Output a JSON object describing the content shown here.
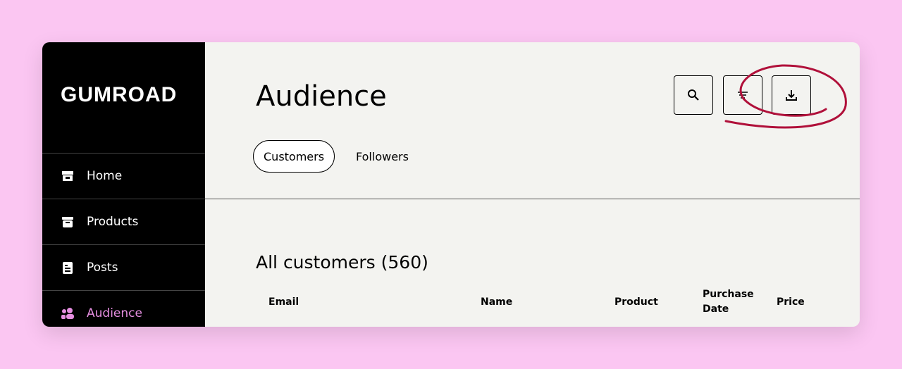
{
  "sidebar": {
    "logo": "GUMROAD",
    "items": [
      {
        "label": "Home",
        "icon": "store-icon"
      },
      {
        "label": "Products",
        "icon": "archive-icon"
      },
      {
        "label": "Posts",
        "icon": "document-icon"
      },
      {
        "label": "Audience",
        "icon": "people-icon",
        "active": true
      }
    ]
  },
  "header": {
    "title": "Audience",
    "buttons": [
      "search-icon",
      "filter-icon",
      "download-icon"
    ]
  },
  "tabs": [
    {
      "label": "Customers",
      "selected": true
    },
    {
      "label": "Followers"
    }
  ],
  "table": {
    "title": "All customers (560)",
    "columns": [
      "Email",
      "Name",
      "Product",
      "Purchase Date",
      "Price"
    ]
  },
  "colors": {
    "accent": "#e58ee0",
    "annotation": "#b0103a",
    "background": "#fbc6f2"
  }
}
